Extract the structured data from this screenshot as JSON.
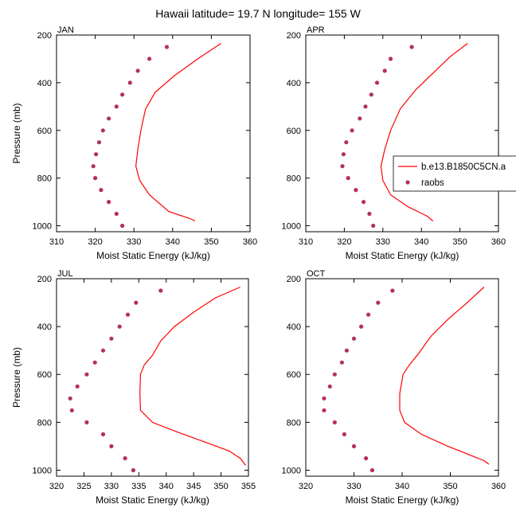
{
  "title": "Hawaii  latitude= 19.7 N longitude= 155 W",
  "colors": {
    "model_line": "#ff0000",
    "raobs_marker": "#b5305b",
    "axes": "#000000"
  },
  "legend": [
    {
      "label": "b.e13.B1850C5CN.a",
      "style": "line"
    },
    {
      "label": "raobs",
      "style": "marker"
    }
  ],
  "chart_data": [
    {
      "type": "line",
      "panel": "JAN",
      "xlabel": "Moist Static Energy (kJ/kg)",
      "ylabel": "Pressure (mb)",
      "xlim": [
        310,
        360
      ],
      "ylim": [
        1025,
        200
      ],
      "xticks": [
        310,
        320,
        330,
        340,
        350,
        360
      ],
      "yticks": [
        200,
        400,
        600,
        800,
        1000
      ],
      "series": [
        {
          "name": "b.e13.B1850C5CN.a",
          "kind": "line",
          "x": [
            352.5,
            346.5,
            340.5,
            335.5,
            333,
            331.8,
            331,
            330.5,
            331.5,
            334,
            339,
            344.5,
            345.8
          ],
          "y": [
            235,
            300,
            370,
            440,
            510,
            600,
            680,
            750,
            810,
            870,
            940,
            970,
            980
          ]
        },
        {
          "name": "raobs",
          "kind": "scatter",
          "x": [
            338.5,
            334,
            331,
            329,
            327,
            325.5,
            323.5,
            322,
            321,
            320.2,
            319.5,
            320,
            321.5,
            323.5,
            325.5,
            327
          ],
          "y": [
            250,
            300,
            350,
            400,
            450,
            500,
            550,
            600,
            650,
            700,
            750,
            800,
            850,
            900,
            950,
            1000
          ]
        }
      ]
    },
    {
      "type": "line",
      "panel": "APR",
      "xlabel": "Moist Static Energy (kJ/kg)",
      "ylabel": "",
      "xlim": [
        310,
        360
      ],
      "ylim": [
        1025,
        200
      ],
      "xticks": [
        310,
        320,
        330,
        340,
        350,
        360
      ],
      "yticks": [
        200,
        400,
        600,
        800,
        1000
      ],
      "series": [
        {
          "name": "b.e13.B1850C5CN.a",
          "kind": "line",
          "x": [
            352,
            347.5,
            343,
            338.5,
            334.5,
            332,
            330.5,
            329.5,
            330,
            332,
            336.5,
            341.5,
            343
          ],
          "y": [
            235,
            290,
            360,
            430,
            510,
            600,
            680,
            750,
            810,
            870,
            920,
            960,
            980
          ]
        },
        {
          "name": "raobs",
          "kind": "scatter",
          "x": [
            337.5,
            332,
            330.5,
            328.5,
            327,
            325.5,
            324,
            322,
            320.5,
            319.8,
            319.5,
            321,
            323,
            325,
            326.5,
            327.5
          ],
          "y": [
            250,
            300,
            350,
            400,
            450,
            500,
            550,
            600,
            650,
            700,
            750,
            800,
            850,
            900,
            950,
            1000
          ]
        }
      ]
    },
    {
      "type": "line",
      "panel": "JUL",
      "xlabel": "Moist Static Energy (kJ/kg)",
      "ylabel": "Pressure (mb)",
      "xlim": [
        320,
        355
      ],
      "ylim": [
        1025,
        200
      ],
      "xticks": [
        320,
        325,
        330,
        335,
        340,
        345,
        350,
        355
      ],
      "yticks": [
        200,
        400,
        600,
        800,
        1000
      ],
      "series": [
        {
          "name": "b.e13.B1850C5CN.a",
          "kind": "line",
          "x": [
            353.5,
            349,
            345,
            341.5,
            339,
            337.5,
            336,
            335.3,
            335.2,
            335.3,
            337.5,
            342,
            348,
            351.5,
            353.5,
            354.5
          ],
          "y": [
            235,
            280,
            340,
            400,
            460,
            520,
            560,
            600,
            680,
            750,
            800,
            840,
            890,
            920,
            950,
            980
          ]
        },
        {
          "name": "raobs",
          "kind": "scatter",
          "x": [
            339,
            334.5,
            333,
            331.5,
            330,
            328.5,
            327,
            325.5,
            323.8,
            322.5,
            322.8,
            325.5,
            328.5,
            330,
            332.5,
            334
          ],
          "y": [
            250,
            300,
            350,
            400,
            450,
            500,
            550,
            600,
            650,
            700,
            750,
            800,
            850,
            900,
            950,
            1000
          ]
        }
      ]
    },
    {
      "type": "line",
      "panel": "OCT",
      "xlabel": "Moist Static Energy (kJ/kg)",
      "ylabel": "",
      "xlim": [
        320,
        360
      ],
      "ylim": [
        1025,
        200
      ],
      "xticks": [
        320,
        330,
        340,
        350,
        360
      ],
      "yticks": [
        200,
        400,
        600,
        800,
        1000
      ],
      "series": [
        {
          "name": "b.e13.B1850C5CN.a",
          "kind": "line",
          "x": [
            357,
            353.5,
            349.5,
            346,
            343.5,
            341.5,
            340.2,
            339.5,
            339.5,
            340.5,
            344,
            349.5,
            354.5,
            357,
            358
          ],
          "y": [
            235,
            300,
            370,
            440,
            510,
            560,
            600,
            680,
            750,
            800,
            850,
            900,
            940,
            960,
            975
          ]
        },
        {
          "name": "raobs",
          "kind": "scatter",
          "x": [
            338,
            335,
            333,
            331.5,
            330,
            328.5,
            327.5,
            326,
            325,
            323.8,
            323.8,
            326,
            328,
            330,
            332.5,
            333.8
          ],
          "y": [
            250,
            300,
            350,
            400,
            450,
            500,
            550,
            600,
            650,
            700,
            750,
            800,
            850,
            900,
            950,
            1000
          ]
        }
      ]
    }
  ]
}
